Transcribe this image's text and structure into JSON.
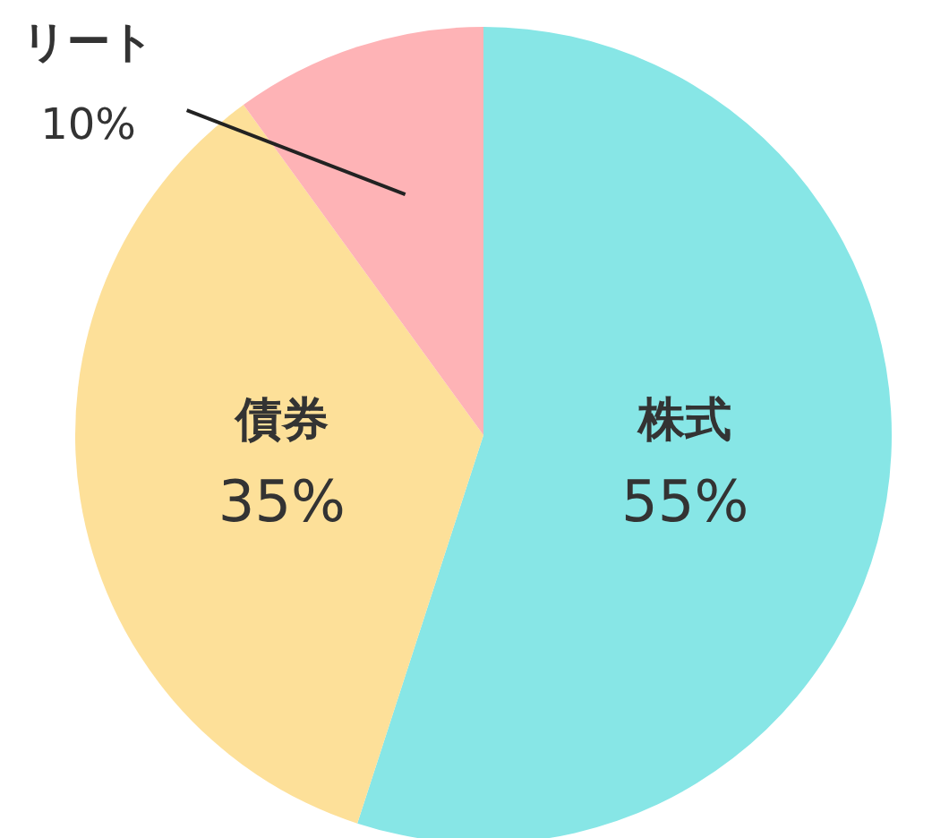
{
  "chart_data": {
    "type": "pie",
    "categories": [
      "株式",
      "債券",
      "リート"
    ],
    "values": [
      55,
      35,
      10
    ],
    "value_labels": [
      "55%",
      "35%",
      "10%"
    ],
    "colors": [
      "#87e6e6",
      "#fde099",
      "#feb3b6"
    ],
    "legend": false
  }
}
